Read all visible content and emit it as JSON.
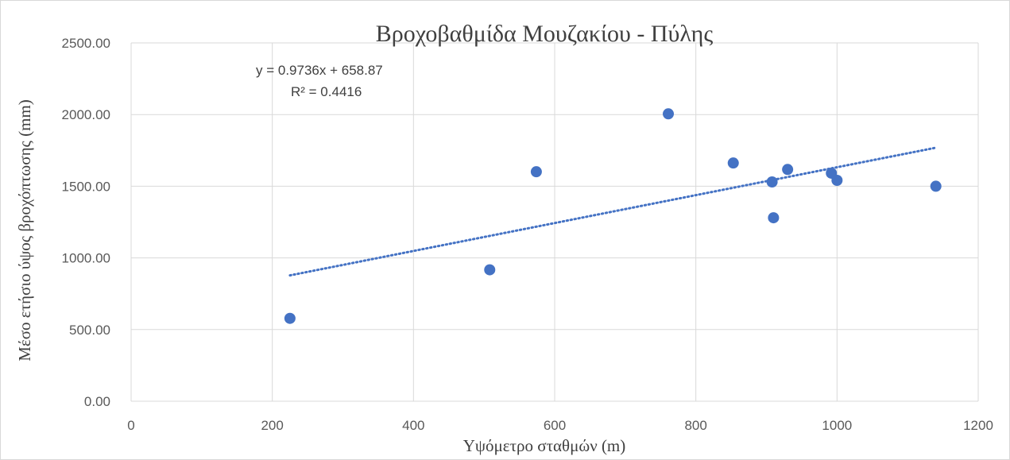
{
  "chart_data": {
    "type": "scatter",
    "title": "Βροχοβαθμίδα Μουζακίου - Πύλης",
    "xlabel": "Υψόμετρο σταθμών (m)",
    "ylabel": "Μέσο ετήσιο ύψος βροχόπτωσης (mm)",
    "xlim": [
      0,
      1200
    ],
    "ylim": [
      0,
      2500
    ],
    "x_ticks": [
      "0",
      "200",
      "400",
      "600",
      "800",
      "1000",
      "1200"
    ],
    "y_ticks": [
      "0.00",
      "500.00",
      "1000.00",
      "1500.00",
      "2000.00",
      "2500.00"
    ],
    "grid": true,
    "series": [
      {
        "color": "#4472c4",
        "points": [
          {
            "x": 225,
            "y": 578
          },
          {
            "x": 508,
            "y": 917
          },
          {
            "x": 574,
            "y": 1601
          },
          {
            "x": 761,
            "y": 2005
          },
          {
            "x": 853,
            "y": 1662
          },
          {
            "x": 908,
            "y": 1530
          },
          {
            "x": 910,
            "y": 1280
          },
          {
            "x": 930,
            "y": 1617
          },
          {
            "x": 992,
            "y": 1591
          },
          {
            "x": 1000,
            "y": 1541
          },
          {
            "x": 1140,
            "y": 1500
          }
        ]
      }
    ],
    "trendline": {
      "type": "linear",
      "style": "dotted",
      "color": "#4472c4",
      "slope": 0.9736,
      "intercept": 658.87,
      "x_range": [
        225,
        1140
      ],
      "equation_label": "y = 0.9736x + 658.87",
      "r2_label": "R² = 0.4416"
    }
  }
}
